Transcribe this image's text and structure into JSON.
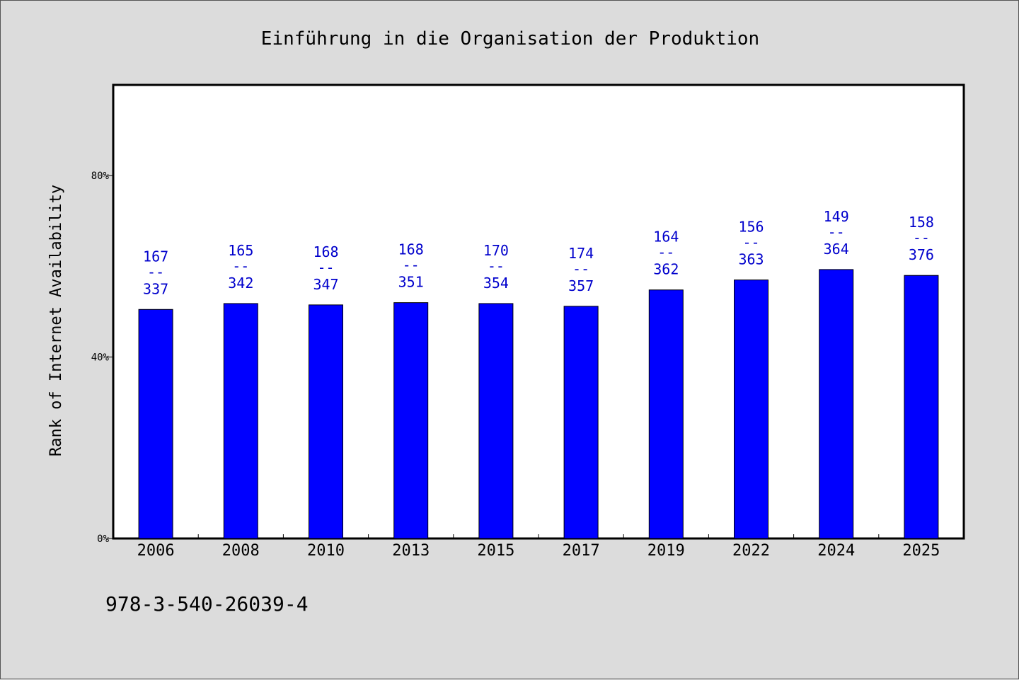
{
  "chart_data": {
    "type": "bar",
    "title": "Einführung in die Organisation der Produktion",
    "xlabel": "",
    "ylabel": "Rank of Internet Availability",
    "ylim": [
      0,
      100
    ],
    "yticks": [
      0,
      40,
      80
    ],
    "ytick_labels": [
      "0%",
      "40%",
      "80%"
    ],
    "categories": [
      "2006",
      "2008",
      "2010",
      "2013",
      "2015",
      "2017",
      "2019",
      "2022",
      "2024",
      "2025"
    ],
    "values": [
      50.5,
      51.8,
      51.5,
      52.0,
      51.8,
      51.2,
      54.8,
      57.0,
      59.3,
      58.0
    ],
    "data_labels": [
      {
        "rank": "167",
        "sep": "--",
        "total": "337"
      },
      {
        "rank": "165",
        "sep": "--",
        "total": "342"
      },
      {
        "rank": "168",
        "sep": "--",
        "total": "347"
      },
      {
        "rank": "168",
        "sep": "--",
        "total": "351"
      },
      {
        "rank": "170",
        "sep": "--",
        "total": "354"
      },
      {
        "rank": "174",
        "sep": "--",
        "total": "357"
      },
      {
        "rank": "164",
        "sep": "--",
        "total": "362"
      },
      {
        "rank": "156",
        "sep": "--",
        "total": "363"
      },
      {
        "rank": "149",
        "sep": "--",
        "total": "364"
      },
      {
        "rank": "158",
        "sep": "--",
        "total": "376"
      }
    ],
    "grid": false,
    "bar_color": "#0000ff",
    "label_color": "#0000cc"
  },
  "footer": {
    "isbn": "978-3-540-26039-4"
  }
}
